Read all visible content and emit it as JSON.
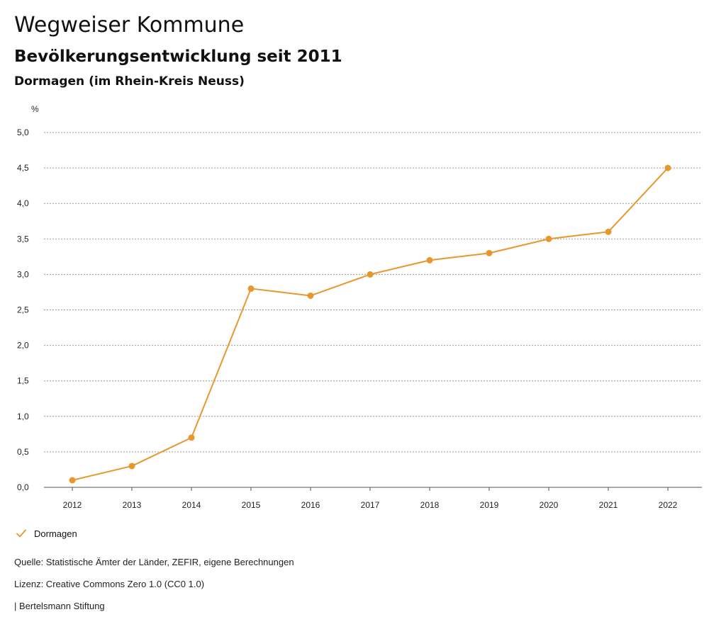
{
  "header": {
    "title": "Wegweiser Kommune",
    "subtitle": "Bevölkerungsentwicklung seit 2011",
    "region": "Dormagen (im Rhein-Kreis Neuss)"
  },
  "legend": {
    "label": "Dormagen",
    "icon": "check-icon"
  },
  "footer": {
    "source": "Quelle: Statistische Ämter der Länder, ZEFIR, eigene Berechnungen",
    "license": "Lizenz: Creative Commons Zero 1.0 (CC0 1.0)",
    "publisher": "| Bertelsmann Stiftung"
  },
  "colors": {
    "series": "#E8962E",
    "grid": "#9a9a9a"
  },
  "chart_data": {
    "type": "line",
    "title": "Bevölkerungsentwicklung seit 2011",
    "xlabel": "",
    "ylabel": "%",
    "x": [
      "2012",
      "2013",
      "2014",
      "2015",
      "2016",
      "2017",
      "2018",
      "2019",
      "2020",
      "2021",
      "2022"
    ],
    "series": [
      {
        "name": "Dormagen",
        "values": [
          0.1,
          0.3,
          0.7,
          2.8,
          2.7,
          3.0,
          3.2,
          3.3,
          3.5,
          3.6,
          4.5
        ]
      }
    ],
    "ylim": [
      0,
      5
    ],
    "yticks": [
      0,
      0.5,
      1.0,
      1.5,
      2.0,
      2.5,
      3.0,
      3.5,
      4.0,
      4.5,
      5.0
    ],
    "ytick_labels": [
      "0,0",
      "0,5",
      "1,0",
      "1,5",
      "2,0",
      "2,5",
      "3,0",
      "3,5",
      "4,0",
      "4,5",
      "5,0"
    ],
    "grid": true,
    "legend_position": "bottom-left"
  }
}
